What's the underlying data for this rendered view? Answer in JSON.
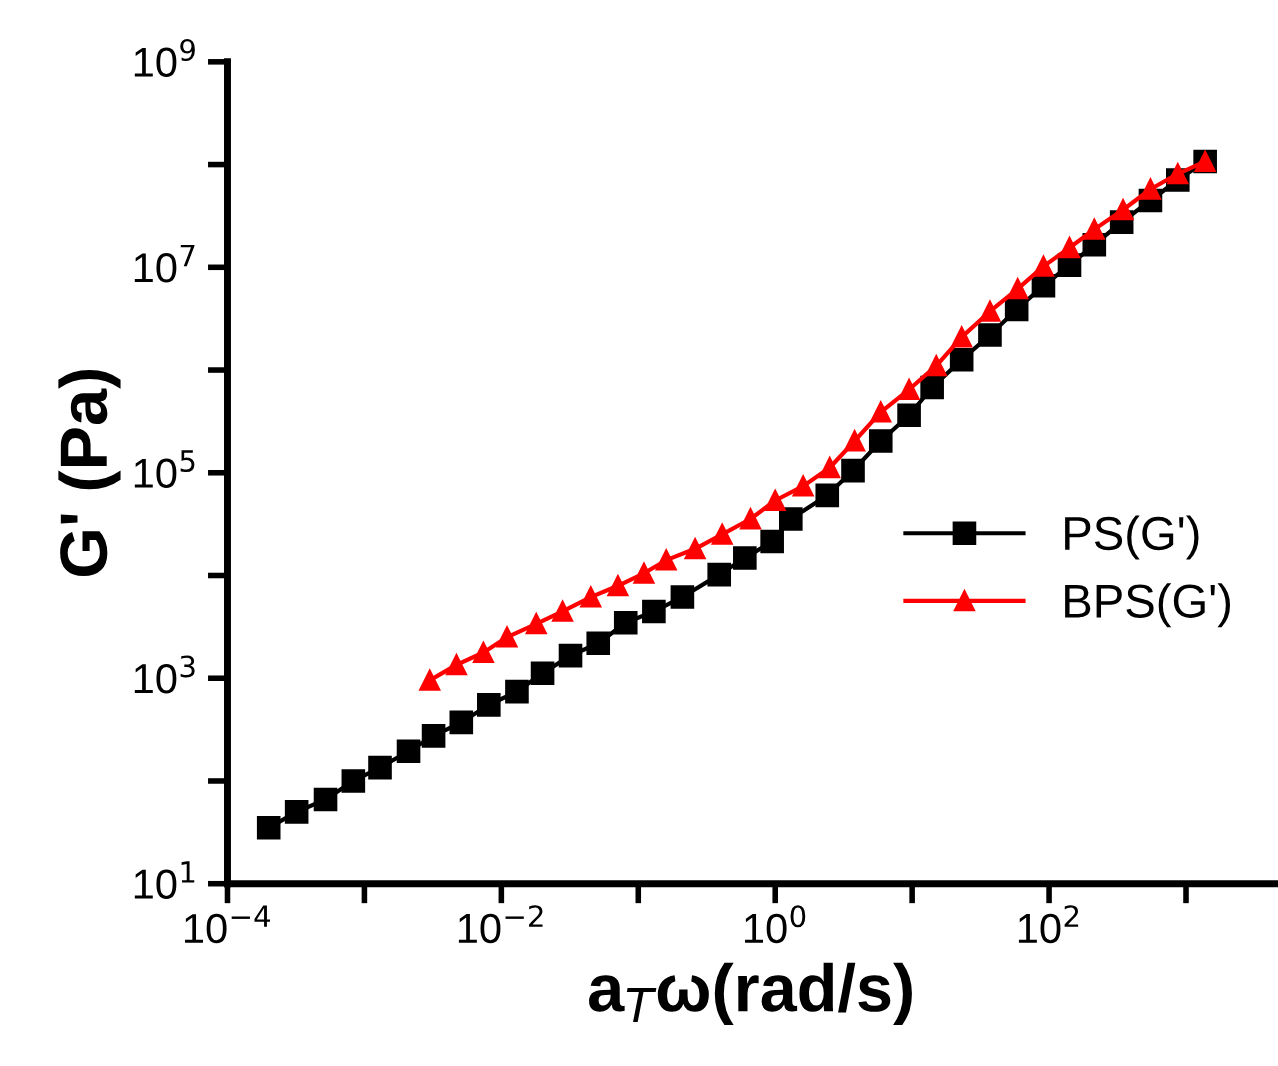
{
  "chart_data": {
    "type": "line",
    "xlabel": "a$_{T}$ω(rad/s)",
    "ylabel": "G' (Pa)",
    "log": "xy",
    "line_style": "solid",
    "legend": "right",
    "grid": false,
    "xlim": [
      0.0001,
      4500
    ],
    "ylim": [
      10,
      1000000000
    ],
    "xticks": [
      {
        "value": 0.0001,
        "label": "10$^{−4}$"
      },
      {
        "value": 0.001,
        "label": null
      },
      {
        "value": 0.01,
        "label": "10$^{−2}$"
      },
      {
        "value": 0.1,
        "label": null
      },
      {
        "value": 1,
        "label": "10$^{0}$"
      },
      {
        "value": 10,
        "label": null
      },
      {
        "value": 100,
        "label": "10$^{2}$"
      },
      {
        "value": 1000,
        "label": null
      }
    ],
    "yticks": [
      {
        "value": 10,
        "label": "10$^{1}$"
      },
      {
        "value": 100,
        "label": null
      },
      {
        "value": 1000,
        "label": "10$^{3}$"
      },
      {
        "value": 10000,
        "label": null
      },
      {
        "value": 100000,
        "label": "10$^{5}$"
      },
      {
        "value": 1000000,
        "label": null
      },
      {
        "value": 10000000,
        "label": "10$^{7}$"
      },
      {
        "value": 100000000,
        "label": null
      },
      {
        "value": 1000000000,
        "label": "10$^{9}$"
      }
    ],
    "series": [
      {
        "name": "PS(G')",
        "color": "#000000",
        "marker": "square",
        "x": [
          0.0002,
          0.00032,
          0.00052,
          0.00083,
          0.0013,
          0.0021,
          0.0032,
          0.0051,
          0.0081,
          0.013,
          0.02,
          0.032,
          0.051,
          0.081,
          0.13,
          0.21,
          0.39,
          0.6,
          0.95,
          1.3,
          2.4,
          3.7,
          5.9,
          9.5,
          14,
          23,
          37,
          58,
          91,
          141,
          214,
          339,
          550,
          871,
          1380
        ],
        "values": [
          35,
          50,
          66,
          100,
          135,
          195,
          275,
          372,
          550,
          741,
          1120,
          1660,
          2190,
          3470,
          4470,
          6170,
          10200,
          14800,
          21400,
          35500,
          60300,
          105000,
          204000,
          363000,
          676000,
          1260000,
          2190000,
          3890000,
          6610000,
          10500000,
          16600000,
          27500000,
          44700000,
          70800000,
          107000000
        ]
      },
      {
        "name": "BPS(G')",
        "color": "#ff0000",
        "marker": "triangle",
        "x": [
          0.003,
          0.0047,
          0.0074,
          0.011,
          0.018,
          0.028,
          0.045,
          0.071,
          0.11,
          0.16,
          0.26,
          0.41,
          0.66,
          1.0,
          1.6,
          2.5,
          3.8,
          5.9,
          9.5,
          15,
          23,
          37,
          59,
          91,
          141,
          214,
          347,
          550,
          871,
          1380
        ],
        "values": [
          955,
          1350,
          1780,
          2510,
          3390,
          4470,
          6170,
          7940,
          10500,
          14100,
          18200,
          25100,
          35500,
          53700,
          74100,
          112000,
          204000,
          389000,
          646000,
          1100000,
          2090000,
          3720000,
          6170000,
          10200000,
          15500000,
          23400000,
          36300000,
          57500000,
          81300000,
          107000000
        ]
      }
    ]
  }
}
